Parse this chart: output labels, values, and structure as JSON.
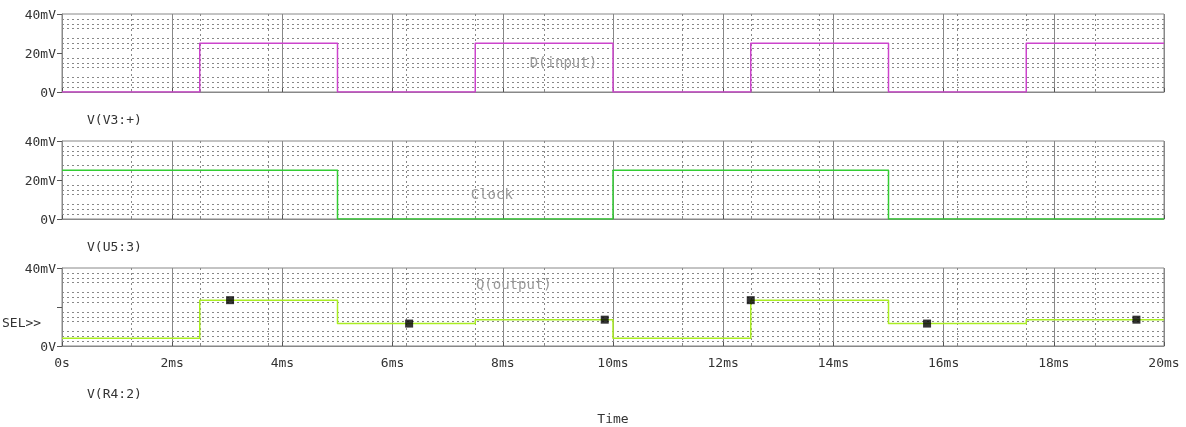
{
  "chart_data": [
    {
      "type": "line",
      "x": [
        0,
        2.5,
        2.5,
        5,
        5,
        7.5,
        7.5,
        10,
        10,
        12.5,
        12.5,
        15,
        15,
        17.5,
        17.5,
        20
      ],
      "series": [
        {
          "name": "V(V3:+)",
          "color": "#cc44cc",
          "values": [
            0,
            0,
            25,
            25,
            0,
            0,
            25,
            25,
            0,
            0,
            25,
            25,
            0,
            0,
            25,
            25
          ]
        }
      ],
      "xlim": [
        0,
        20
      ],
      "xticks": [
        0,
        2,
        4,
        6,
        8,
        10,
        12,
        14,
        16,
        18,
        20
      ],
      "ylim": [
        0,
        40
      ],
      "yticks": [
        {
          "value": 0,
          "label": "0V"
        },
        {
          "value": 20,
          "label": "20mV"
        },
        {
          "value": 40,
          "label": "40mV"
        }
      ],
      "tick_labels": "y",
      "grid": true,
      "legend": "bottom left",
      "annotations": [
        "D(input)"
      ]
    },
    {
      "type": "line",
      "x": [
        0,
        5,
        5,
        10,
        10,
        15,
        15,
        20
      ],
      "series": [
        {
          "name": "V(U5:3)",
          "color": "#33cc33",
          "values": [
            25,
            25,
            0,
            0,
            25,
            25,
            0,
            0
          ]
        }
      ],
      "xlim": [
        0,
        20
      ],
      "xticks": [
        0,
        2,
        4,
        6,
        8,
        10,
        12,
        14,
        16,
        18,
        20
      ],
      "ylim": [
        0,
        40
      ],
      "yticks": [
        {
          "value": 0,
          "label": "0V"
        },
        {
          "value": 20,
          "label": "20mV"
        },
        {
          "value": 40,
          "label": "40mV"
        }
      ],
      "tick_labels": "y",
      "grid": true,
      "legend": "bottom left",
      "annotations": [
        "Clock"
      ]
    },
    {
      "type": "line",
      "x": [
        0,
        2.5,
        2.5,
        5,
        5,
        7.5,
        7.5,
        10,
        10,
        12.5,
        12.5,
        15,
        15,
        17.5,
        17.5,
        20
      ],
      "xlabel": "Time",
      "series": [
        {
          "name": "V(R4:2)",
          "color": "#aaee22",
          "values": [
            4,
            4,
            23.5,
            23.5,
            11.5,
            11.5,
            13.5,
            13.5,
            4,
            4,
            23.5,
            23.5,
            11.5,
            11.5,
            13.5,
            13.5
          ]
        },
        {
          "type": "scatter",
          "color": "#000000",
          "x": [
            3.05,
            6.3,
            9.85,
            12.5,
            15.7,
            19.5
          ],
          "values": [
            23.5,
            11.5,
            13.5,
            23.5,
            11.5,
            13.5
          ]
        }
      ],
      "xlim": [
        0,
        20
      ],
      "xticks": [
        {
          "value": 0,
          "label": "0s"
        },
        {
          "value": 2,
          "label": "2ms"
        },
        {
          "value": 4,
          "label": "4ms"
        },
        {
          "value": 6,
          "label": "6ms"
        },
        {
          "value": 8,
          "label": "8ms"
        },
        {
          "value": 10,
          "label": "10ms"
        },
        {
          "value": 12,
          "label": "12ms"
        },
        {
          "value": 14,
          "label": "14ms"
        },
        {
          "value": 16,
          "label": "16ms"
        },
        {
          "value": 18,
          "label": "18ms"
        },
        {
          "value": 20,
          "label": "20ms"
        }
      ],
      "ylim": [
        0,
        40
      ],
      "yticks": [
        {
          "value": 0,
          "label": "0V"
        },
        {
          "value": 20,
          "label": null
        },
        {
          "value": 40,
          "label": "40mV"
        }
      ],
      "grid": true,
      "legend": "bottom left",
      "annotations": [
        "Q(output)",
        "SEL>>"
      ]
    }
  ]
}
